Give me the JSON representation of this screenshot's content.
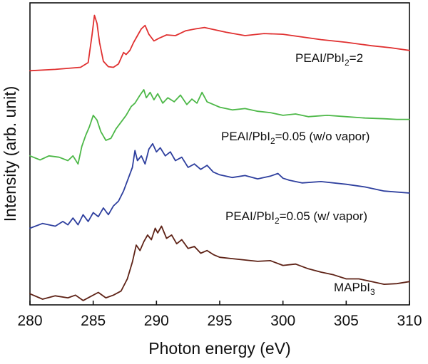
{
  "chart_data": {
    "type": "line",
    "title": "",
    "xlabel": "Photon energy (eV)",
    "ylabel": "Intensity (arb. unit)",
    "xlim": [
      280,
      310
    ],
    "ylim": [
      0,
      4.3
    ],
    "xticks": [
      280,
      285,
      290,
      295,
      300,
      305,
      310
    ],
    "xtick_labels": [
      "280",
      "285",
      "290",
      "295",
      "300",
      "305",
      "310"
    ],
    "yticks": [],
    "grid": false,
    "legend": "none (labels placed next to each curve)",
    "series": [
      {
        "name": "PEAI/PbI2=2",
        "label_main": "PEAI/PbI",
        "label_sub": "2",
        "label_tail": "=2",
        "color": "#e03030",
        "x": [
          280.0,
          282.0,
          284.0,
          284.6,
          284.9,
          285.1,
          285.3,
          285.5,
          285.8,
          286.2,
          286.6,
          287.0,
          287.4,
          287.6,
          287.9,
          288.2,
          288.5,
          288.8,
          289.1,
          289.4,
          289.8,
          290.2,
          290.8,
          291.5,
          292.3,
          293.1,
          293.8,
          294.5,
          295.5,
          297.0,
          298.5,
          300.0,
          301.5,
          303.0,
          305.0,
          307.0,
          308.5,
          310.0
        ],
        "y": [
          3.38,
          3.4,
          3.43,
          3.5,
          3.9,
          4.2,
          4.08,
          3.8,
          3.52,
          3.44,
          3.43,
          3.48,
          3.65,
          3.62,
          3.68,
          3.8,
          3.9,
          4.0,
          4.05,
          3.92,
          3.82,
          3.86,
          3.91,
          3.9,
          3.97,
          4.0,
          4.02,
          3.99,
          3.95,
          3.9,
          3.93,
          3.92,
          3.88,
          3.84,
          3.8,
          3.75,
          3.72,
          3.68
        ]
      },
      {
        "name": "PEAI/PbI2=0.05 (w/o vapor)",
        "label_main": "PEAI/PbI",
        "label_sub": "2",
        "label_tail": "=0.05 (w/o vapor)",
        "color": "#4db848",
        "x": [
          280.0,
          280.8,
          281.5,
          282.3,
          283.0,
          283.4,
          283.8,
          284.1,
          284.4,
          284.7,
          285.0,
          285.3,
          285.6,
          286.0,
          286.4,
          286.8,
          287.2,
          287.6,
          288.0,
          288.3,
          288.7,
          289.0,
          289.2,
          289.5,
          289.8,
          290.1,
          290.5,
          290.9,
          291.4,
          291.9,
          292.4,
          292.8,
          293.2,
          293.6,
          294.0,
          294.5,
          295.0,
          296.0,
          297.0,
          298.0,
          299.0,
          300.0,
          301.0,
          302.0,
          303.5,
          305.0,
          306.5,
          308.0,
          309.0,
          310.0
        ],
        "y": [
          2.12,
          2.06,
          2.12,
          2.1,
          2.05,
          2.12,
          2.0,
          2.26,
          2.42,
          2.55,
          2.72,
          2.65,
          2.48,
          2.35,
          2.38,
          2.52,
          2.62,
          2.72,
          2.85,
          2.9,
          3.02,
          3.1,
          2.98,
          3.06,
          2.95,
          3.04,
          2.9,
          2.98,
          2.92,
          3.02,
          2.88,
          2.96,
          2.9,
          3.06,
          2.92,
          2.88,
          2.84,
          2.8,
          2.82,
          2.78,
          2.76,
          2.72,
          2.74,
          2.7,
          2.72,
          2.7,
          2.68,
          2.67,
          2.66,
          2.66
        ]
      },
      {
        "name": "PEAI/PbI2=0.05 (w/ vapor)",
        "label_main": "PEAI/PbI",
        "label_sub": "2",
        "label_tail": "=0.05 (w/ vapor)",
        "color": "#2e3f9e",
        "x": [
          280.0,
          281.0,
          282.0,
          282.6,
          283.0,
          283.4,
          283.8,
          284.2,
          284.6,
          285.0,
          285.4,
          285.8,
          286.2,
          286.6,
          287.0,
          287.4,
          287.8,
          288.1,
          288.3,
          288.5,
          288.8,
          289.1,
          289.4,
          289.7,
          290.0,
          290.3,
          290.7,
          291.1,
          291.5,
          292.0,
          292.5,
          293.0,
          293.5,
          294.0,
          294.5,
          295.0,
          296.0,
          297.0,
          298.0,
          299.0,
          299.6,
          300.0,
          300.5,
          301.5,
          303.0,
          305.0,
          306.5,
          308.0,
          310.0
        ],
        "y": [
          1.05,
          1.12,
          1.08,
          1.15,
          1.1,
          1.2,
          1.1,
          1.25,
          1.15,
          1.28,
          1.22,
          1.35,
          1.25,
          1.38,
          1.45,
          1.6,
          1.8,
          1.95,
          2.2,
          2.05,
          2.12,
          2.0,
          2.22,
          2.3,
          2.18,
          2.24,
          2.12,
          2.18,
          2.05,
          2.1,
          1.95,
          2.0,
          1.92,
          1.98,
          1.88,
          1.84,
          1.8,
          1.83,
          1.78,
          1.82,
          1.86,
          1.79,
          1.76,
          1.72,
          1.74,
          1.7,
          1.66,
          1.6,
          1.57
        ]
      },
      {
        "name": "MAPbI3",
        "label_main": "MAPbI",
        "label_sub": "3",
        "label_tail": "",
        "color": "#5e2216",
        "x": [
          280.0,
          281.0,
          282.0,
          283.0,
          283.6,
          284.2,
          284.8,
          285.4,
          286.0,
          286.6,
          287.2,
          287.7,
          288.1,
          288.4,
          288.7,
          289.0,
          289.3,
          289.6,
          289.9,
          290.1,
          290.4,
          290.8,
          291.2,
          291.6,
          292.0,
          292.5,
          293.0,
          293.5,
          294.0,
          294.5,
          295.0,
          296.0,
          297.0,
          298.0,
          299.0,
          300.0,
          301.0,
          302.0,
          303.0,
          304.0,
          305.0,
          306.0,
          307.0,
          308.0,
          309.0,
          310.0
        ],
        "y": [
          0.08,
          0.0,
          0.05,
          0.02,
          0.06,
          -0.02,
          0.04,
          0.1,
          0.02,
          0.06,
          0.12,
          0.3,
          0.55,
          0.8,
          0.72,
          0.85,
          0.95,
          0.88,
          1.05,
          0.98,
          1.08,
          0.9,
          0.95,
          0.82,
          0.88,
          0.75,
          0.78,
          0.68,
          0.72,
          0.66,
          0.62,
          0.6,
          0.58,
          0.56,
          0.57,
          0.5,
          0.52,
          0.45,
          0.4,
          0.36,
          0.3,
          0.3,
          0.26,
          0.22,
          0.23,
          0.26
        ]
      }
    ]
  }
}
